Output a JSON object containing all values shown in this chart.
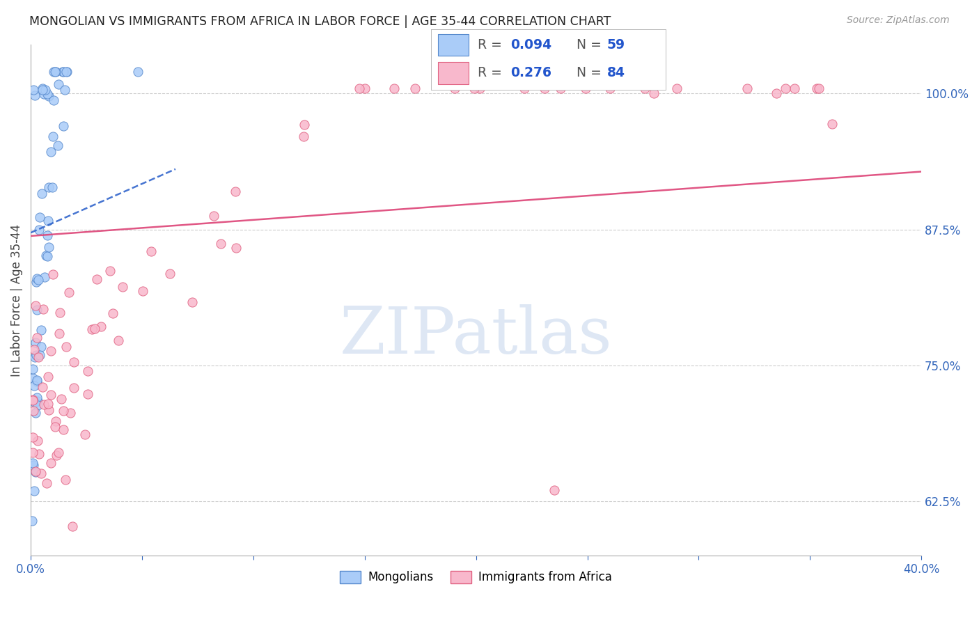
{
  "title": "MONGOLIAN VS IMMIGRANTS FROM AFRICA IN LABOR FORCE | AGE 35-44 CORRELATION CHART",
  "source": "Source: ZipAtlas.com",
  "ylabel": "In Labor Force | Age 35-44",
  "ytick_labels": [
    "62.5%",
    "75.0%",
    "87.5%",
    "100.0%"
  ],
  "ytick_values": [
    0.625,
    0.75,
    0.875,
    1.0
  ],
  "xtick_show": [
    "0.0%",
    "40.0%"
  ],
  "xtick_pos_show": [
    0.0,
    0.4
  ],
  "xlim": [
    0.0,
    0.4
  ],
  "ylim": [
    0.575,
    1.045
  ],
  "mongolian_color": "#aaccf8",
  "mongolian_edge": "#5588cc",
  "africa_color": "#f8b8cc",
  "africa_edge": "#e06080",
  "trend_mongolian_color": "#3366cc",
  "trend_africa_color": "#dd4477",
  "background_color": "#ffffff",
  "grid_color": "#cccccc",
  "watermark": "ZIPatlas",
  "watermark_color": "#c8d8ee",
  "leg_mong_label": "R = 0.094   N = 59",
  "leg_africa_label": "R = 0.276   N = 84",
  "bottom_leg_mong": "Mongolians",
  "bottom_leg_africa": "Immigrants from Africa"
}
